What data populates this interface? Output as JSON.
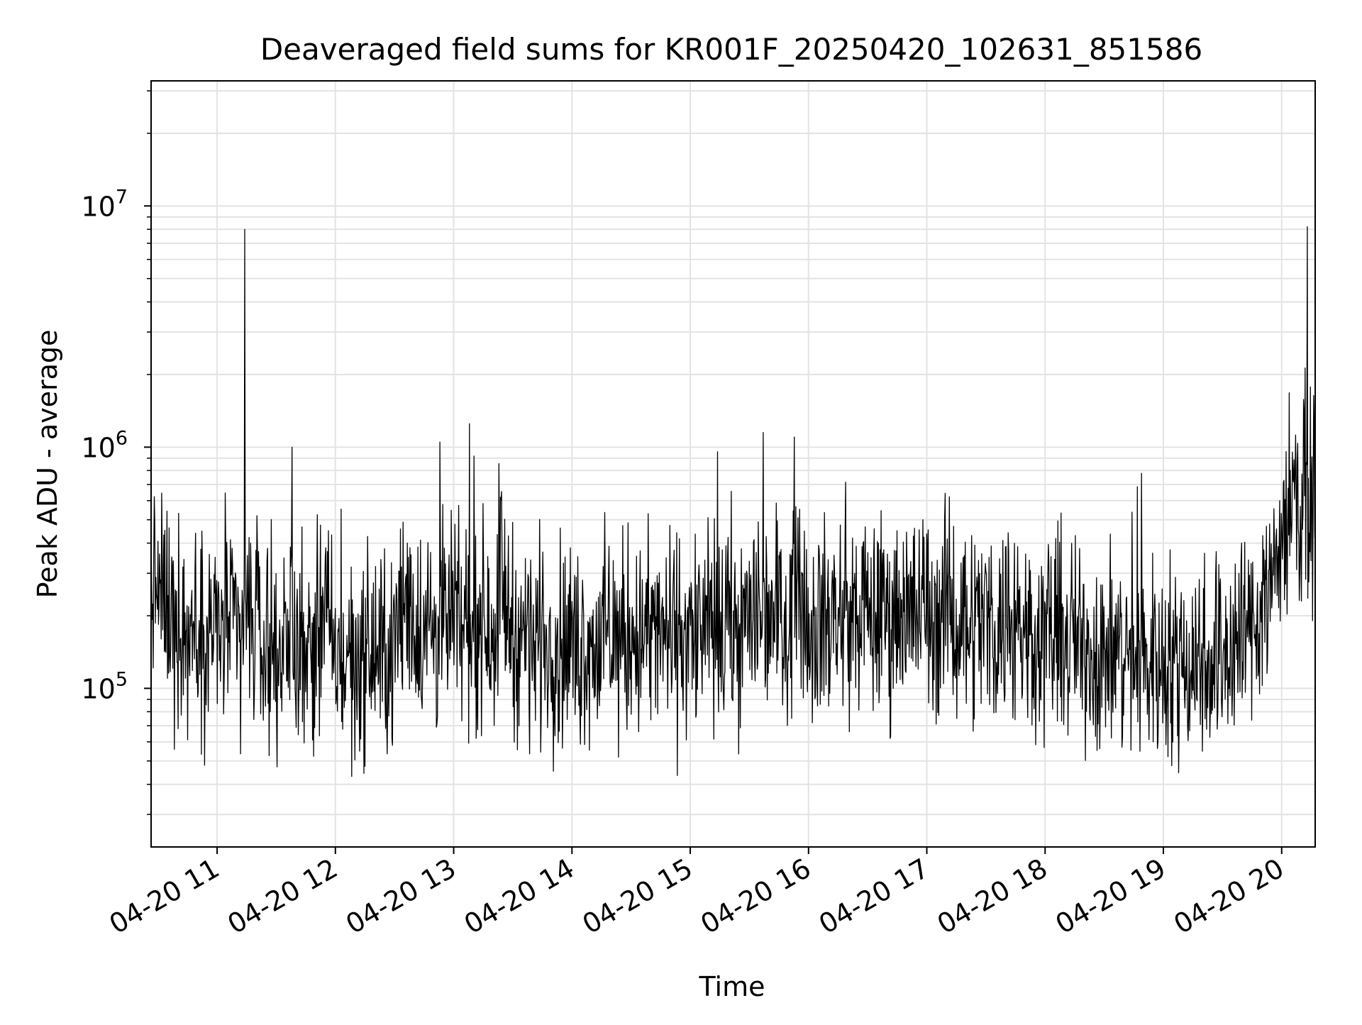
{
  "chart_data": {
    "type": "line",
    "title": "Deaveraged field sums for KR001F_20250420_102631_851586",
    "xlabel": "Time",
    "ylabel": "Peak ADU - average",
    "yscale": "log",
    "ylim": [
      22000,
      33000000
    ],
    "xlim": [
      "2025-04-20T10:26:31",
      "2025-04-20T20:17:00"
    ],
    "grid": true,
    "x_ticks": [
      "04-20 11",
      "04-20 12",
      "04-20 13",
      "04-20 14",
      "04-20 15",
      "04-20 16",
      "04-20 17",
      "04-20 18",
      "04-20 19",
      "04-20 20"
    ],
    "y_ticks": [
      {
        "value": 100000,
        "base": "10",
        "exp": "5"
      },
      {
        "value": 1000000,
        "base": "10",
        "exp": "6"
      },
      {
        "value": 10000000,
        "base": "10",
        "exp": "7"
      }
    ],
    "line_color": "#000000",
    "series": [
      {
        "x": [
          "2025-04-20T10:26:31",
          "2025-04-20T10:40:00",
          "2025-04-20T11:00:00",
          "2025-04-20T11:14:00",
          "2025-04-20T11:30:00",
          "2025-04-20T11:38:00",
          "2025-04-20T12:00:00",
          "2025-04-20T12:30:00",
          "2025-04-20T12:53:00",
          "2025-04-20T13:00:00",
          "2025-04-20T13:08:00",
          "2025-04-20T13:30:00",
          "2025-04-20T14:00:00",
          "2025-04-20T14:30:00",
          "2025-04-20T15:00:00",
          "2025-04-20T15:30:00",
          "2025-04-20T15:37:00",
          "2025-04-20T16:00:00",
          "2025-04-20T16:30:00",
          "2025-04-20T17:00:00",
          "2025-04-20T17:30:00",
          "2025-04-20T18:00:00",
          "2025-04-20T18:30:00",
          "2025-04-20T19:00:00",
          "2025-04-20T19:30:00",
          "2025-04-20T19:45:00",
          "2025-04-20T20:00:00",
          "2025-04-20T20:13:00",
          "2025-04-20T20:17:00"
        ],
        "y": [
          280000,
          190000,
          160000,
          8000000,
          140000,
          1000000,
          130000,
          140000,
          1050000,
          160000,
          1250000,
          170000,
          150000,
          165000,
          165000,
          180000,
          1150000,
          190000,
          200000,
          210000,
          190000,
          170000,
          140000,
          130000,
          140000,
          180000,
          380000,
          8200000,
          520000
        ]
      }
    ]
  }
}
